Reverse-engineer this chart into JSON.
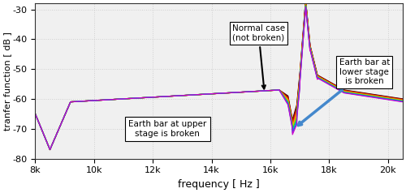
{
  "xlabel": "frequency [ Hz ]",
  "ylabel": "tranfer function [ dB ]",
  "xlim": [
    8000,
    20500
  ],
  "ylim": [
    -80,
    -28
  ],
  "xticks": [
    8000,
    10000,
    12000,
    14000,
    16000,
    18000,
    20000
  ],
  "xticklabels": [
    "8k",
    "10k",
    "12k",
    "14k",
    "16k",
    "18k",
    "20k"
  ],
  "yticks": [
    -80,
    -70,
    -60,
    -50,
    -40,
    -30
  ],
  "grid_color": "#d0d0d0",
  "bg_color": "#f0f0f0",
  "line_colors": [
    "#3d0000",
    "#8B0000",
    "#cc2200",
    "#ff4400",
    "#ff8800",
    "#cccc00",
    "#44cc00",
    "#00bbbb",
    "#0066ff",
    "#cc00cc"
  ],
  "annotation1_text": "Normal case\n(not broken)",
  "annotation2_text": "Earth bar at upper\nstage is broken",
  "annotation3_text": "Earth bar at\nlower stage\nis broken",
  "figsize": [
    5.0,
    2.38
  ],
  "dpi": 100
}
